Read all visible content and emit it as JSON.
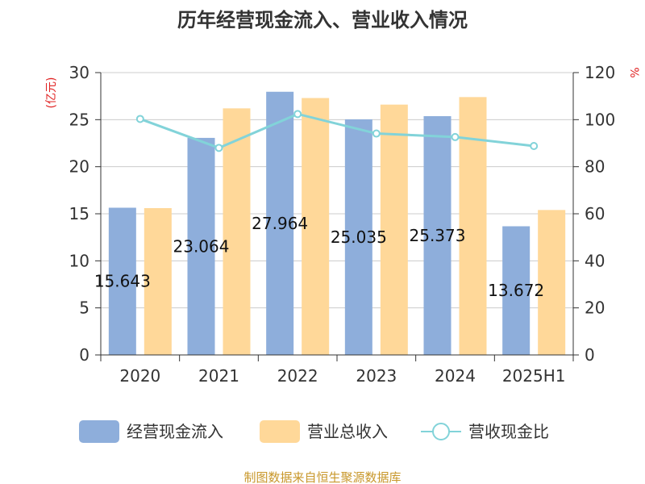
{
  "chart_data": {
    "type": "bar",
    "title": "历年经营现金流入、营业收入情况",
    "categories": [
      "2020",
      "2021",
      "2022",
      "2023",
      "2024",
      "2025H1"
    ],
    "series": [
      {
        "name": "经营现金流入",
        "kind": "bar",
        "axis": "left",
        "color": "#8eaedb",
        "values": [
          15.643,
          23.064,
          27.964,
          25.035,
          25.373,
          13.672
        ],
        "labels": [
          "15.643",
          "23.064",
          "27.964",
          "25.035",
          "25.373",
          "13.672"
        ]
      },
      {
        "name": "营业总收入",
        "kind": "bar",
        "axis": "left",
        "color": "#ffd899",
        "values": [
          15.6,
          26.2,
          27.3,
          26.6,
          27.4,
          15.4
        ]
      },
      {
        "name": "营收现金比",
        "kind": "line",
        "axis": "right",
        "color": "#82d3d9",
        "values": [
          100.3,
          88.0,
          102.4,
          94.1,
          92.6,
          88.8
        ]
      }
    ],
    "y_left": {
      "label": "(亿元)",
      "min": 0,
      "max": 30,
      "ticks": [
        0,
        5,
        10,
        15,
        20,
        25,
        30
      ]
    },
    "y_right": {
      "label": "%",
      "min": 0,
      "max": 120,
      "ticks": [
        0,
        20,
        40,
        60,
        80,
        100,
        120
      ]
    },
    "grid": true,
    "legend_position": "bottom"
  },
  "source": "制图数据来自恒生聚源数据库"
}
